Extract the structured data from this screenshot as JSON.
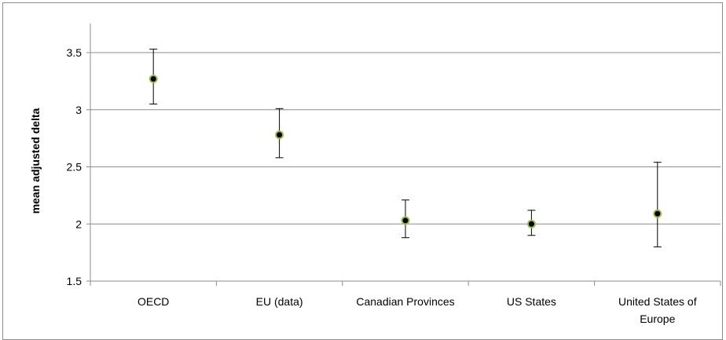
{
  "chart_data": {
    "type": "scatter",
    "title": "",
    "xlabel": "",
    "ylabel": "mean adjusted delta",
    "ylim": [
      1.5,
      3.75
    ],
    "yticks": [
      "1.5",
      "2",
      "2.5",
      "3",
      "3.5"
    ],
    "grid": true,
    "categories": [
      "OECD",
      "EU (data)",
      "Canadian Provinces",
      "US States",
      "United States of Europe"
    ],
    "values": [
      3.27,
      2.78,
      2.03,
      2.0,
      2.09
    ],
    "error_low": [
      3.05,
      2.58,
      1.88,
      1.9,
      1.8
    ],
    "error_high": [
      3.53,
      3.01,
      2.21,
      2.12,
      2.54
    ],
    "marker_fill": "#000000",
    "marker_edge": "#9bbb59",
    "gridline_color": "#8c8c8c"
  }
}
